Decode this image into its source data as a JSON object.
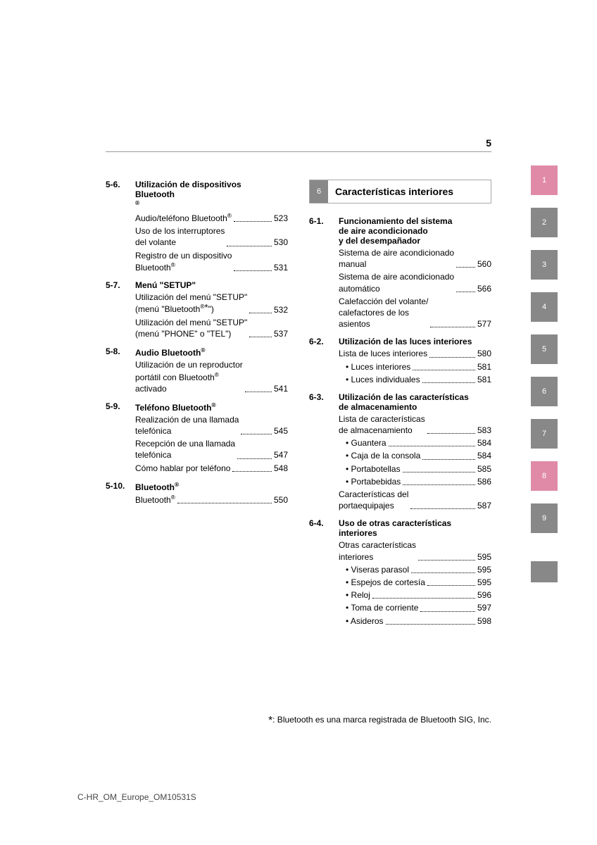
{
  "page_number": "5",
  "left_column": {
    "sections": [
      {
        "num": "5-6.",
        "title_lines": [
          "Utilización de dispositivos",
          "Bluetooth"
        ],
        "title_sup": "®",
        "entries": [
          {
            "lines": [
              "Audio/teléfono Bluetooth"
            ],
            "sup": "®",
            "page": "523"
          },
          {
            "lines": [
              "Uso de los interruptores",
              "del volante"
            ],
            "page": "530"
          },
          {
            "lines": [
              "Registro de un dispositivo",
              "Bluetooth"
            ],
            "sup": "®",
            "page": "531"
          }
        ]
      },
      {
        "num": "5-7.",
        "title_lines": [
          "Menú \"SETUP\""
        ],
        "entries": [
          {
            "lines": [
              "Utilización del menú \"SETUP\"",
              "(menú \"Bluetooth"
            ],
            "sup": "®",
            "star": true,
            "close": "\")",
            "page": "532"
          },
          {
            "lines": [
              "Utilización del menú \"SETUP\"",
              "(menú \"PHONE\" o \"TEL\")"
            ],
            "page": "537"
          }
        ]
      },
      {
        "num": "5-8.",
        "title_lines": [
          "Audio Bluetooth"
        ],
        "title_sup": "®",
        "entries": [
          {
            "lines": [
              "Utilización de un reproductor",
              "portátil con Bluetooth"
            ],
            "sup": "®",
            "extra_line": "activado",
            "page": "541"
          }
        ]
      },
      {
        "num": "5-9.",
        "title_lines": [
          "Teléfono Bluetooth"
        ],
        "title_sup": "®",
        "entries": [
          {
            "lines": [
              "Realización de una llamada",
              "telefónica"
            ],
            "page": "545"
          },
          {
            "lines": [
              "Recepción de una llamada",
              "telefónica"
            ],
            "page": "547"
          },
          {
            "lines": [
              "Cómo hablar por teléfono"
            ],
            "page": "548"
          }
        ]
      },
      {
        "num": "5-10.",
        "title_lines": [
          "Bluetooth"
        ],
        "title_sup": "®",
        "entries": [
          {
            "lines": [
              "Bluetooth"
            ],
            "sup": "®",
            "page": "550"
          }
        ]
      }
    ]
  },
  "right_column": {
    "chapter": {
      "num": "6",
      "title": "Características interiores"
    },
    "sections": [
      {
        "num": "6-1.",
        "title_lines": [
          "Funcionamiento del sistema",
          "de aire acondicionado",
          "y del desempañador"
        ],
        "entries": [
          {
            "lines": [
              "Sistema de aire acondicionado",
              "manual"
            ],
            "page": "560"
          },
          {
            "lines": [
              "Sistema de aire acondicionado",
              "automático"
            ],
            "page": "566"
          },
          {
            "lines": [
              "Calefacción del volante/",
              "calefactores de los",
              "asientos"
            ],
            "page": "577"
          }
        ]
      },
      {
        "num": "6-2.",
        "title_lines": [
          "Utilización de las luces interiores"
        ],
        "entries": [
          {
            "lines": [
              "Lista de luces interiores"
            ],
            "page": "580"
          },
          {
            "lines": [
              "• Luces interiores"
            ],
            "sub": true,
            "page": "581"
          },
          {
            "lines": [
              "• Luces individuales"
            ],
            "sub": true,
            "page": "581"
          }
        ]
      },
      {
        "num": "6-3.",
        "title_lines": [
          "Utilización de las características",
          "de almacenamiento"
        ],
        "entries": [
          {
            "lines": [
              "Lista de características",
              "de almacenamiento"
            ],
            "page": "583"
          },
          {
            "lines": [
              "• Guantera"
            ],
            "sub": true,
            "page": "584"
          },
          {
            "lines": [
              "• Caja de la consola"
            ],
            "sub": true,
            "page": "584"
          },
          {
            "lines": [
              "• Portabotellas"
            ],
            "sub": true,
            "page": "585"
          },
          {
            "lines": [
              "• Portabebidas"
            ],
            "sub": true,
            "page": "586"
          },
          {
            "lines": [
              "Características del",
              "portaequipajes"
            ],
            "page": "587"
          }
        ]
      },
      {
        "num": "6-4.",
        "title_lines": [
          "Uso de otras características",
          "interiores"
        ],
        "entries": [
          {
            "lines": [
              "Otras características",
              "interiores"
            ],
            "page": "595"
          },
          {
            "lines": [
              "• Viseras parasol"
            ],
            "sub": true,
            "page": "595"
          },
          {
            "lines": [
              "• Espejos de cortesía"
            ],
            "sub": true,
            "page": "595"
          },
          {
            "lines": [
              "• Reloj"
            ],
            "sub": true,
            "page": "596"
          },
          {
            "lines": [
              "• Toma de corriente"
            ],
            "sub": true,
            "page": "597"
          },
          {
            "lines": [
              "• Asideros"
            ],
            "sub": true,
            "page": "598"
          }
        ]
      }
    ]
  },
  "tabs": [
    {
      "label": "1",
      "active": true
    },
    {
      "label": "2",
      "active": false
    },
    {
      "label": "3",
      "active": false
    },
    {
      "label": "4",
      "active": false
    },
    {
      "label": "5",
      "active": false
    },
    {
      "label": "6",
      "active": false
    },
    {
      "label": "7",
      "active": false
    },
    {
      "label": "8",
      "active": true
    },
    {
      "label": "9",
      "active": false
    }
  ],
  "footnote": {
    "mark": "*",
    "text": ": Bluetooth es una marca registrada de Bluetooth SIG, Inc."
  },
  "doc_id": "C-HR_OM_Europe_OM10531S",
  "colors": {
    "tab_gray": "#888888",
    "tab_active": "#e08aa8",
    "rule": "#999999"
  }
}
